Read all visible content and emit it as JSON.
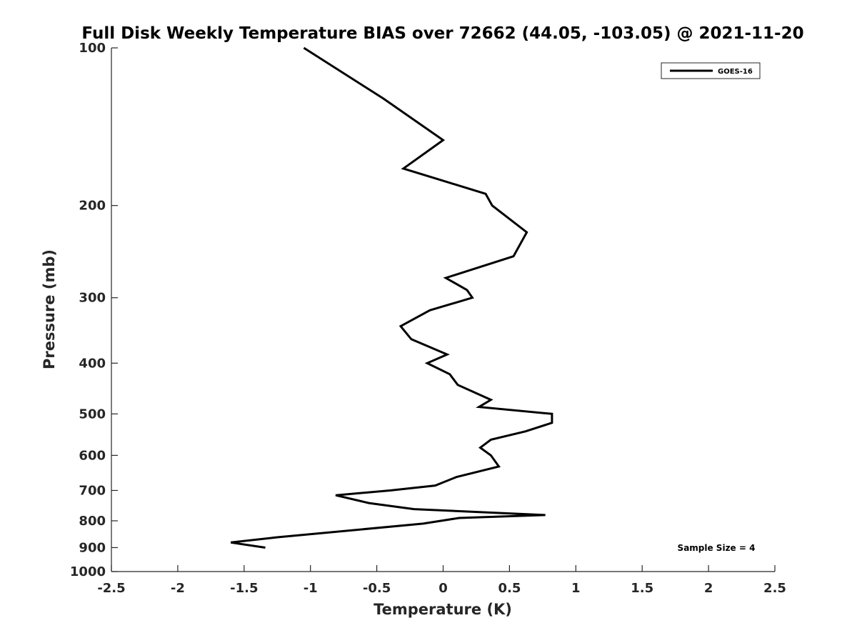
{
  "chart_data": {
    "type": "line",
    "title": "Full Disk Weekly Temperature BIAS over 72662 (44.05, -103.05) @ 2021-11-20",
    "xlabel": "Temperature (K)",
    "ylabel": "Pressure (mb)",
    "xlim": [
      -2.5,
      2.5
    ],
    "ylim": [
      100,
      1000
    ],
    "y_scale": "log",
    "y_reversed": true,
    "x_ticks": [
      "-2.5",
      "-2",
      "-1.5",
      "-1",
      "-0.5",
      "0",
      "0.5",
      "1",
      "1.5",
      "2",
      "2.5"
    ],
    "x_tick_values": [
      -2.5,
      -2,
      -1.5,
      -1,
      -0.5,
      0,
      0.5,
      1,
      1.5,
      2,
      2.5
    ],
    "y_ticks": [
      "100",
      "200",
      "300",
      "400",
      "500",
      "600",
      "700",
      "800",
      "900",
      "1000"
    ],
    "y_tick_values": [
      100,
      200,
      300,
      400,
      500,
      600,
      700,
      800,
      900,
      1000
    ],
    "grid": false,
    "legend_position": "top-right",
    "series": [
      {
        "name": "GOES-16",
        "color": "#000000",
        "points": [
          [
            -1.05,
            100
          ],
          [
            -0.45,
            125
          ],
          [
            0.0,
            150
          ],
          [
            -0.3,
            170
          ],
          [
            0.32,
            190
          ],
          [
            0.37,
            200
          ],
          [
            0.63,
            225
          ],
          [
            0.53,
            250
          ],
          [
            0.02,
            275
          ],
          [
            0.18,
            290
          ],
          [
            0.22,
            300
          ],
          [
            -0.1,
            317
          ],
          [
            -0.32,
            340
          ],
          [
            -0.24,
            360
          ],
          [
            0.03,
            385
          ],
          [
            -0.12,
            400
          ],
          [
            0.05,
            420
          ],
          [
            0.11,
            440
          ],
          [
            0.36,
            470
          ],
          [
            0.27,
            485
          ],
          [
            0.82,
            500
          ],
          [
            0.82,
            520
          ],
          [
            0.62,
            540
          ],
          [
            0.36,
            560
          ],
          [
            0.28,
            580
          ],
          [
            0.36,
            600
          ],
          [
            0.42,
            630
          ],
          [
            0.1,
            660
          ],
          [
            -0.06,
            685
          ],
          [
            -0.4,
            700
          ],
          [
            -0.81,
            715
          ],
          [
            -0.56,
            740
          ],
          [
            -0.22,
            760
          ],
          [
            0.77,
            780
          ],
          [
            0.12,
            790
          ],
          [
            -0.15,
            810
          ],
          [
            -1.25,
            860
          ],
          [
            -1.6,
            880
          ],
          [
            -1.34,
            900
          ]
        ]
      }
    ],
    "annotation": "Sample Size = 4"
  }
}
